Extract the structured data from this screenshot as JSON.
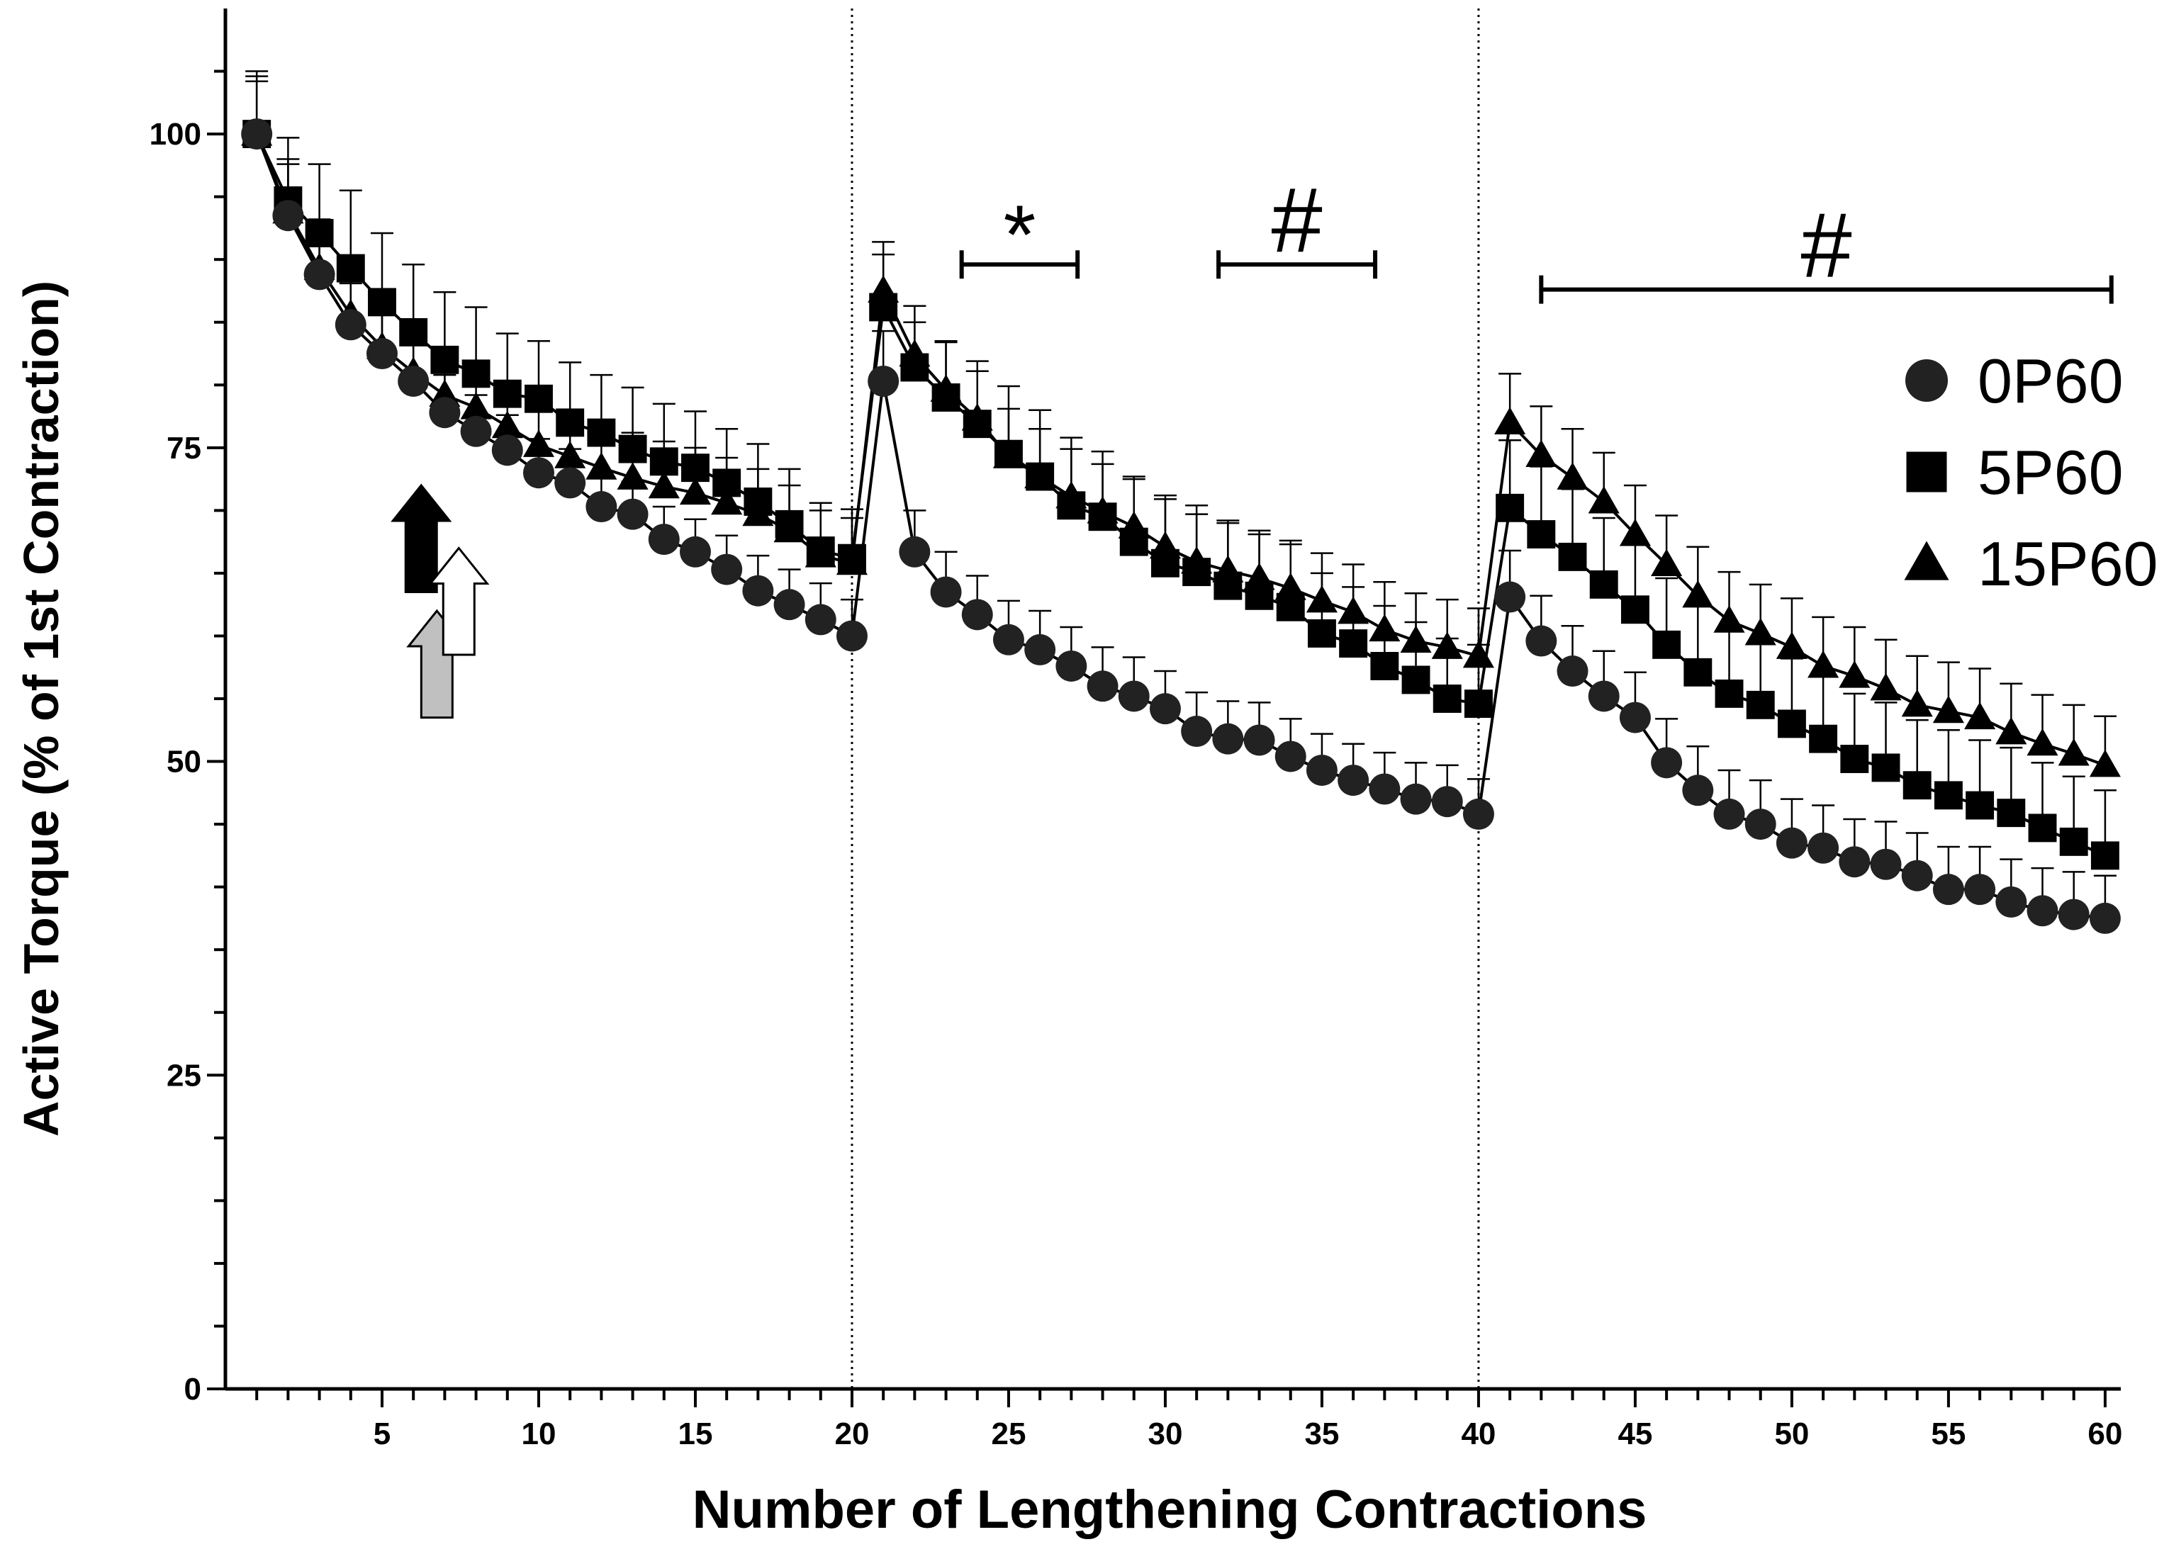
{
  "chart_data": {
    "type": "line",
    "xlabel": "Number of Lengthening Contractions",
    "ylabel": "Active Torque  (% of 1st Contraction)",
    "xlim": [
      0,
      60.5
    ],
    "ylim": [
      0,
      110
    ],
    "x_ticks": [
      5,
      10,
      15,
      20,
      25,
      30,
      35,
      40,
      45,
      50,
      55,
      60
    ],
    "y_ticks": [
      0,
      25,
      50,
      75,
      100
    ],
    "grid": false,
    "legend_position": "right",
    "x": [
      1,
      2,
      3,
      4,
      5,
      6,
      7,
      8,
      9,
      10,
      11,
      12,
      13,
      14,
      15,
      16,
      17,
      18,
      19,
      20,
      21,
      22,
      23,
      24,
      25,
      26,
      27,
      28,
      29,
      30,
      31,
      32,
      33,
      34,
      35,
      36,
      37,
      38,
      39,
      40,
      41,
      42,
      43,
      44,
      45,
      46,
      47,
      48,
      49,
      50,
      51,
      52,
      53,
      54,
      55,
      56,
      57,
      58,
      59,
      60
    ],
    "series": [
      {
        "name": "0P60",
        "marker": "circle",
        "values": [
          100,
          93.5,
          88.8,
          84.8,
          82.5,
          80.3,
          77.8,
          76.3,
          74.8,
          73,
          72.2,
          70.3,
          69.7,
          67.7,
          66.7,
          65.3,
          63.6,
          62.5,
          61.3,
          60,
          80.3,
          66.7,
          63.5,
          61.7,
          59.7,
          58.9,
          57.6,
          56,
          55.2,
          54.2,
          52.4,
          51.8,
          51.7,
          50.4,
          49.3,
          48.5,
          47.8,
          47,
          46.8,
          45.8,
          63.1,
          59.6,
          57.2,
          55.2,
          53.5,
          49.9,
          47.7,
          45.8,
          45,
          43.5,
          43.1,
          42,
          41.8,
          40.9,
          39.8,
          39.8,
          38.8,
          38.1,
          37.8,
          37.5
        ],
        "error": [
          4.2,
          4.1,
          3.6,
          3.3,
          3.1,
          3.0,
          3.0,
          2.9,
          2.8,
          2.7,
          2.7,
          2.6,
          2.6,
          2.6,
          2.6,
          2.7,
          2.8,
          2.8,
          2.9,
          2.9,
          4.0,
          3.3,
          3.2,
          3.1,
          3.1,
          3.1,
          3.1,
          3.1,
          3.1,
          3.0,
          3.1,
          3.0,
          3.0,
          3.0,
          2.9,
          2.9,
          2.9,
          2.9,
          2.9,
          2.8,
          3.7,
          3.6,
          3.6,
          3.6,
          3.6,
          3.5,
          3.5,
          3.5,
          3.5,
          3.5,
          3.4,
          3.4,
          3.4,
          3.4,
          3.4,
          3.4,
          3.4,
          3.4,
          3.4,
          3.4
        ]
      },
      {
        "name": "5P60",
        "marker": "square",
        "values": [
          100,
          94.7,
          92.1,
          89.3,
          86.6,
          84.2,
          82,
          80.9,
          79.3,
          78.9,
          77,
          76.2,
          74.9,
          73.9,
          73.4,
          72.2,
          70.7,
          68.9,
          66.8,
          66.2,
          86.2,
          81.4,
          79,
          76.9,
          74.5,
          72.7,
          70.4,
          69.5,
          67.5,
          65.8,
          65.1,
          64,
          63.2,
          62.3,
          60.2,
          59.4,
          57.6,
          56.5,
          55,
          54.6,
          70.2,
          68.1,
          66.3,
          64.1,
          62.1,
          59.3,
          57.1,
          55.4,
          54.5,
          53,
          51.8,
          50.2,
          49.5,
          48.1,
          47.3,
          46.5,
          45.9,
          44.7,
          43.6,
          42.5
        ],
        "error": [
          5.0,
          5.0,
          5.5,
          6.2,
          5.5,
          5.4,
          5.4,
          5.3,
          4.8,
          4.6,
          4.8,
          4.6,
          4.9,
          4.6,
          4.5,
          4.3,
          4.6,
          4.4,
          3.8,
          3.9,
          4.2,
          3.6,
          4.5,
          5.0,
          5.4,
          5.3,
          5.4,
          5.2,
          5.2,
          5.4,
          5.3,
          5.2,
          4.9,
          5.0,
          4.8,
          4.5,
          4.8,
          4.6,
          4.8,
          4.7,
          5.4,
          5.4,
          5.4,
          5.3,
          5.3,
          5.3,
          5.3,
          5.3,
          5.2,
          5.2,
          5.2,
          5.2,
          5.2,
          5.2,
          5.2,
          5.2,
          5.2,
          5.2,
          5.2,
          5.2
        ]
      },
      {
        "name": "15P60",
        "marker": "triangle",
        "values": [
          100,
          93.8,
          89.3,
          85.6,
          83,
          81,
          79.2,
          78.2,
          76.7,
          75.2,
          74.3,
          73.4,
          72.6,
          71.9,
          71.4,
          70.6,
          69.7,
          68.4,
          66.4,
          65.8,
          87.5,
          82.4,
          79.6,
          77.3,
          74.3,
          72.7,
          71.1,
          69.9,
          68.7,
          67.1,
          65.9,
          65.2,
          64.6,
          63.8,
          62.8,
          61.9,
          60.5,
          59.6,
          59.1,
          58.4,
          77,
          74.4,
          72.6,
          70.7,
          68.1,
          65.7,
          63.2,
          61.2,
          60.2,
          59.1,
          57.6,
          56.8,
          55.8,
          54.5,
          54,
          53.5,
          52.3,
          51.4,
          50.6,
          49.7
        ],
        "error": [
          4.6,
          4.2,
          3.9,
          3.6,
          3.6,
          3.6,
          3.6,
          3.6,
          3.6,
          3.6,
          3.6,
          3.6,
          3.6,
          3.6,
          3.6,
          3.6,
          3.6,
          3.6,
          3.6,
          3.6,
          3.9,
          3.9,
          3.8,
          3.8,
          3.8,
          3.8,
          3.8,
          3.8,
          3.8,
          3.8,
          3.8,
          3.8,
          3.8,
          3.8,
          3.8,
          3.8,
          3.8,
          3.8,
          3.8,
          3.8,
          3.9,
          3.9,
          3.9,
          3.9,
          3.9,
          3.9,
          3.9,
          3.9,
          3.9,
          3.9,
          3.9,
          3.9,
          3.9,
          3.9,
          3.9,
          3.9,
          3.9,
          3.9,
          3.9,
          3.9
        ]
      }
    ],
    "vertical_lines": [
      20,
      40
    ],
    "significance": [
      {
        "symbol": "*",
        "x_start": 23.5,
        "x_end": 27.2,
        "y": 89.6
      },
      {
        "symbol": "#",
        "x_start": 31.7,
        "x_end": 36.7,
        "y": 89.6
      },
      {
        "symbol": "#",
        "x_start": 42,
        "x_end": 60.2,
        "y": 87.6
      }
    ],
    "arrows": [
      {
        "color": "#000000",
        "x": 6.25,
        "y_tail": 63.5,
        "y_head": 72
      },
      {
        "color": "#c0c0c0",
        "x": 6.75,
        "y_tail": 53.5,
        "y_head": 62
      },
      {
        "color": "#ffffff",
        "x": 7.45,
        "y_tail": 58.5,
        "y_head": 67
      }
    ]
  }
}
